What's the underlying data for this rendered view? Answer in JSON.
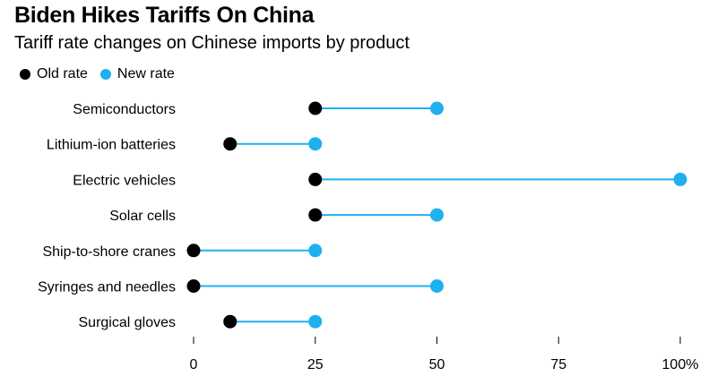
{
  "chart_data": {
    "type": "dumbbell",
    "title": "Biden Hikes Tariffs On China",
    "subtitle": "Tariff rate changes on Chinese imports by product",
    "legend": [
      {
        "name": "Old rate",
        "color": "#000000"
      },
      {
        "name": "New rate",
        "color": "#1fb0f0"
      }
    ],
    "categories": [
      "Semiconductors",
      "Lithium-ion batteries",
      "Electric vehicles",
      "Solar cells",
      "Ship-to-shore cranes",
      "Syringes and needles",
      "Surgical gloves"
    ],
    "series": [
      {
        "name": "Old rate",
        "values": [
          25,
          7.5,
          25,
          25,
          0,
          0,
          7.5
        ]
      },
      {
        "name": "New rate",
        "values": [
          50,
          25,
          100,
          50,
          25,
          50,
          25
        ]
      }
    ],
    "xlim": [
      0,
      100
    ],
    "xticks": [
      {
        "value": 0,
        "label": "0"
      },
      {
        "value": 25,
        "label": "25"
      },
      {
        "value": 50,
        "label": "50"
      },
      {
        "value": 75,
        "label": "75"
      },
      {
        "value": 100,
        "label": "100%"
      }
    ],
    "grid": false,
    "legend_position": "top-left",
    "colors": {
      "old": "#000000",
      "new": "#1fb0f0",
      "connector": "#1fb0f0"
    }
  }
}
